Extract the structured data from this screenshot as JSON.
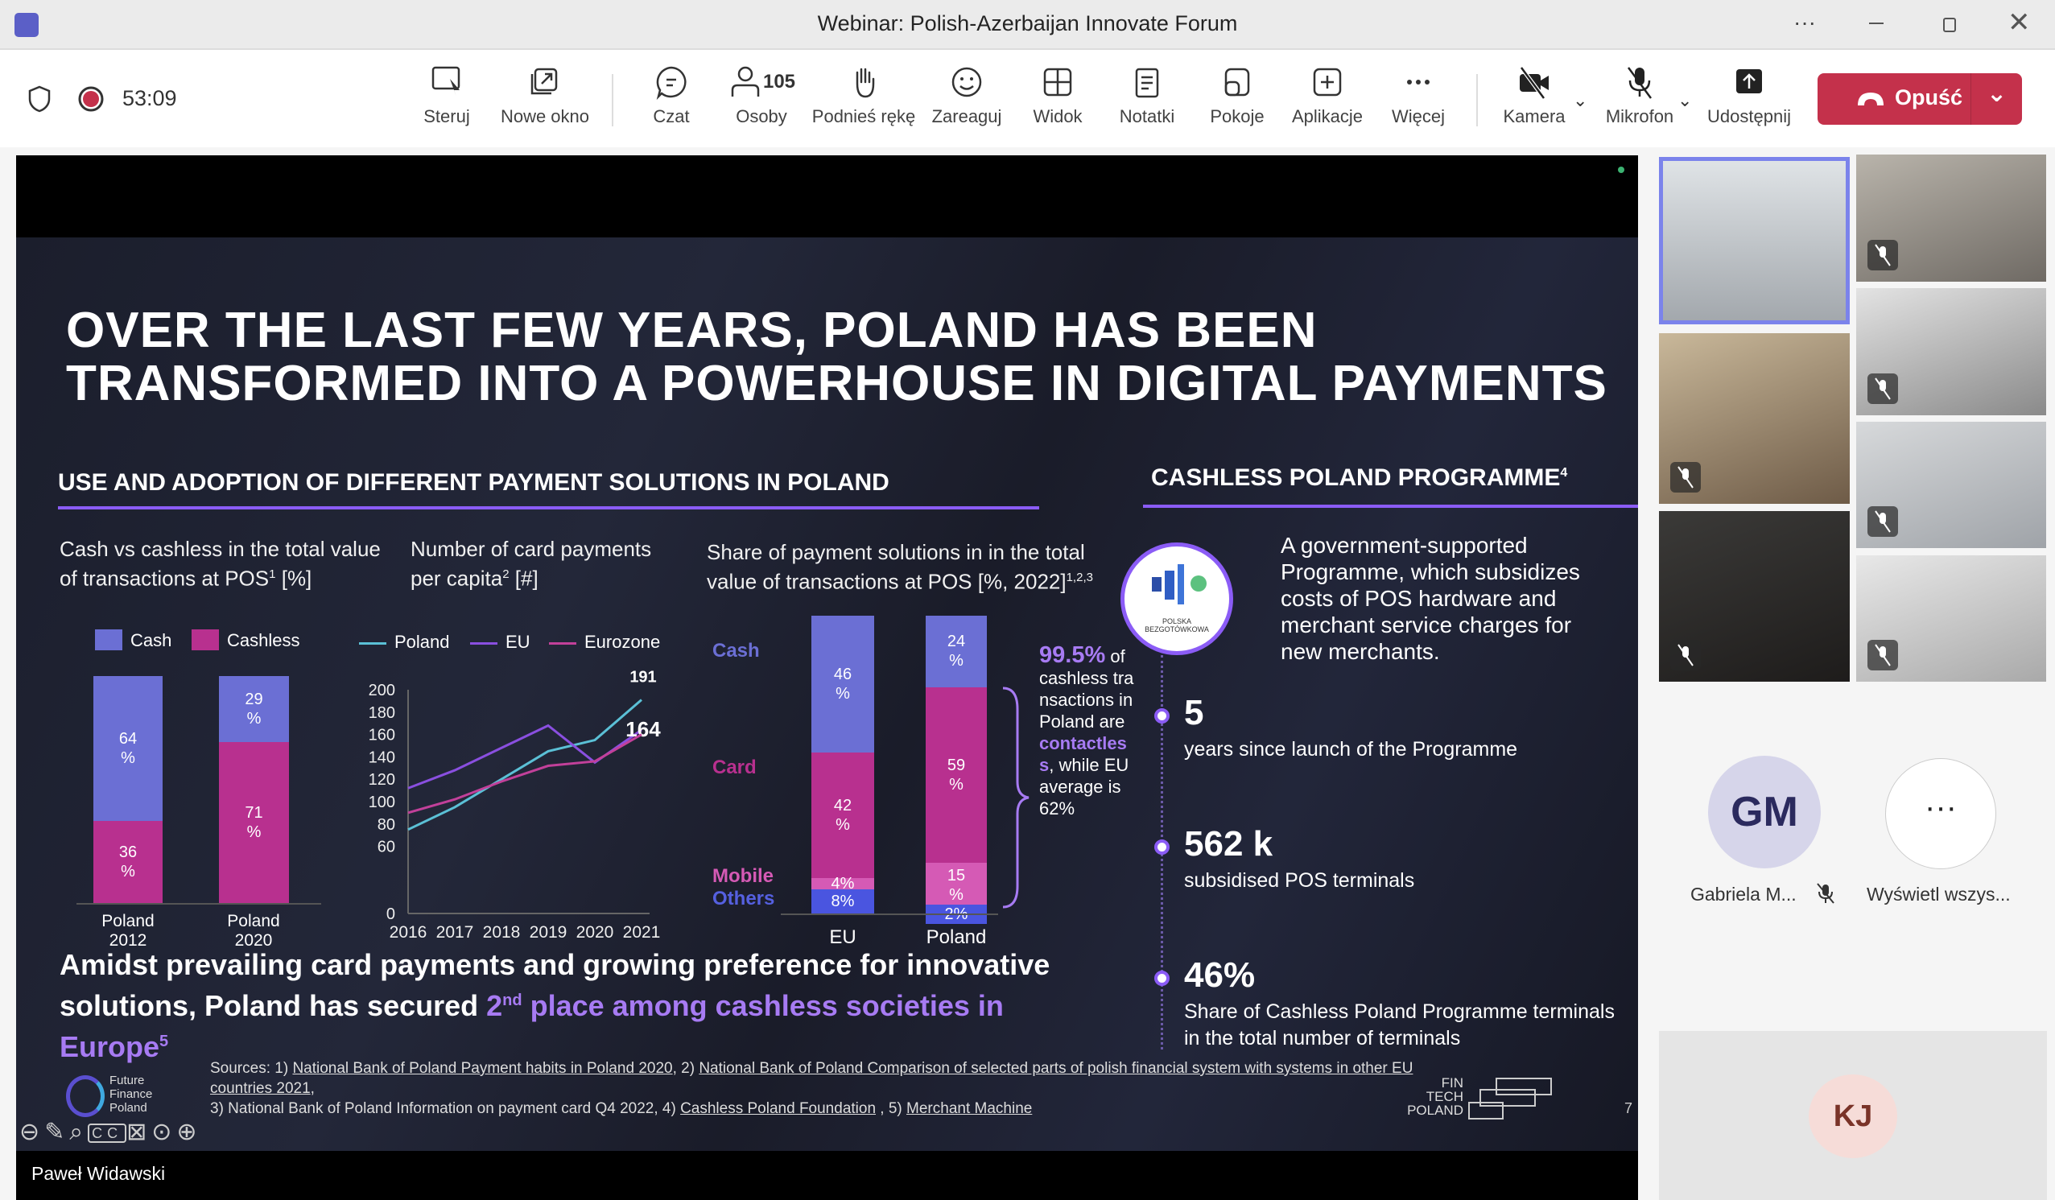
{
  "window": {
    "title": "Webinar: Polish-Azerbaijan Innovate Forum"
  },
  "toolbar": {
    "timer": "53:09",
    "people_count": "105",
    "buttons": [
      "Steruj",
      "Nowe okno",
      "Czat",
      "Osoby",
      "Podnieś rękę",
      "Zareaguj",
      "Widok",
      "Notatki",
      "Pokoje",
      "Aplikacje",
      "Więcej",
      "Kamera",
      "Mikrofon",
      "Udostępnij"
    ],
    "leave_label": "Opuść"
  },
  "presenter_name": "Paweł Widawski",
  "slide": {
    "title_line1": "OVER THE LAST FEW YEARS, POLAND HAS BEEN",
    "title_line2": "TRANSFORMED INTO A POWERHOUSE IN DIGITAL PAYMENTS",
    "section_left": "USE AND ADOPTION OF DIFFERENT PAYMENT SOLUTIONS IN POLAND",
    "section_right": "CASHLESS POLAND PROGRAMME",
    "section_right_sup": "4",
    "programme_logo_text": "POLSKA BEZGOTÓWKOWA",
    "programme_description": "A government-supported Programme, which subsidizes costs of POS hardware and merchant service charges for new merchants.",
    "stats": [
      {
        "value": "5",
        "label": "years since launch of the Programme"
      },
      {
        "value": "562 k",
        "label": "subsidised POS terminals"
      },
      {
        "value": "46%",
        "label": "Share of Cashless Poland Programme terminals in the total number of terminals"
      }
    ],
    "conclusion": {
      "text": "Amidst prevailing card payments and growing preference for innovative solutions, Poland has secured ",
      "highlight_num": "2",
      "highlight_sup": "nd",
      "highlight": " place among cashless societies in Europe",
      "sup": "5"
    },
    "annotation": {
      "value": "99.5%",
      "text1": "of cashless transactions in Poland are",
      "highlight": "contactless",
      "text2": ", while EU average is 62%"
    },
    "sources": {
      "prefix": "Sources: 1) ",
      "s1": "National Bank of Poland Payment habits in Poland 2020",
      "mid1": ", 2) ",
      "s2": "National Bank of Poland Comparison of selected parts of polish financial system with systems in other EU countries 2021",
      "mid2": ",",
      "s3": "3) National Bank of Poland Information on payment card Q4 2022, 4) ",
      "s4": "Cashless Poland Foundation",
      "mid3": " , 5) ",
      "s5": "Merchant Machine"
    },
    "logo_left": "Future Finance Poland",
    "logo_right": "FIN TECH POLAND",
    "page_number": "7"
  },
  "colors": {
    "cash": "#6b6fd4",
    "cashless": "#b8308f",
    "mobile": "#d55ab5",
    "others": "#4a55e0",
    "poland": "#5bc0d6",
    "eu": "#8a4fe0",
    "eurozone": "#c2409a",
    "accent": "#8b5cf6",
    "leave": "#c4314b"
  },
  "chart_data": [
    {
      "type": "bar",
      "stacked": true,
      "title": "Cash vs cashless in the total value of transactions at POS",
      "title_sup": "1",
      "unit": "[%]",
      "categories": [
        "Poland 2012",
        "Poland 2020"
      ],
      "series": [
        {
          "name": "Cash",
          "values": [
            64,
            29
          ]
        },
        {
          "name": "Cashless",
          "values": [
            36,
            71
          ]
        }
      ],
      "data_labels": [
        [
          "64 %",
          "29 %"
        ],
        [
          "36 %",
          "71 %"
        ]
      ],
      "legend": "top"
    },
    {
      "type": "line",
      "title": "Number of card payments per capita",
      "title_sup": "2",
      "unit": "[#]",
      "x": [
        "2016",
        "2017",
        "2018",
        "2019",
        "2020",
        "2021"
      ],
      "ylim": [
        0,
        200
      ],
      "yticks": [
        "0",
        "60",
        "80",
        "100",
        "120",
        "140",
        "160",
        "180",
        "200"
      ],
      "series": [
        {
          "name": "Poland",
          "values": [
            75,
            95,
            120,
            145,
            155,
            191
          ]
        },
        {
          "name": "EU",
          "values": [
            112,
            128,
            148,
            168,
            135,
            164
          ]
        },
        {
          "name": "Eurozone",
          "values": [
            90,
            102,
            118,
            132,
            136,
            160
          ]
        }
      ],
      "data_labels": {
        "Poland": "191",
        "EU": "164"
      },
      "legend": "top"
    },
    {
      "type": "bar",
      "stacked": true,
      "title": "Share of payment solutions in in the total value of transactions at POS [%, 2022]",
      "title_sup": "1,2,3",
      "categories": [
        "EU",
        "Poland"
      ],
      "series": [
        {
          "name": "Cash",
          "values": [
            46,
            24
          ]
        },
        {
          "name": "Card",
          "values": [
            42,
            59
          ]
        },
        {
          "name": "Mobile",
          "values": [
            4,
            15
          ]
        },
        {
          "name": "Others",
          "values": [
            8,
            2
          ]
        }
      ],
      "data_labels": [
        [
          "46 %",
          "24 %"
        ],
        [
          "42 %",
          "59 %"
        ],
        [
          "4%",
          "15 %"
        ],
        [
          "8%",
          "2%"
        ]
      ],
      "legend": "left"
    }
  ],
  "participants": {
    "gm_initials": "GM",
    "gm_name": "Gabriela M...",
    "show_all_label": "Wyświetl wszys...",
    "kj_initials": "KJ"
  }
}
